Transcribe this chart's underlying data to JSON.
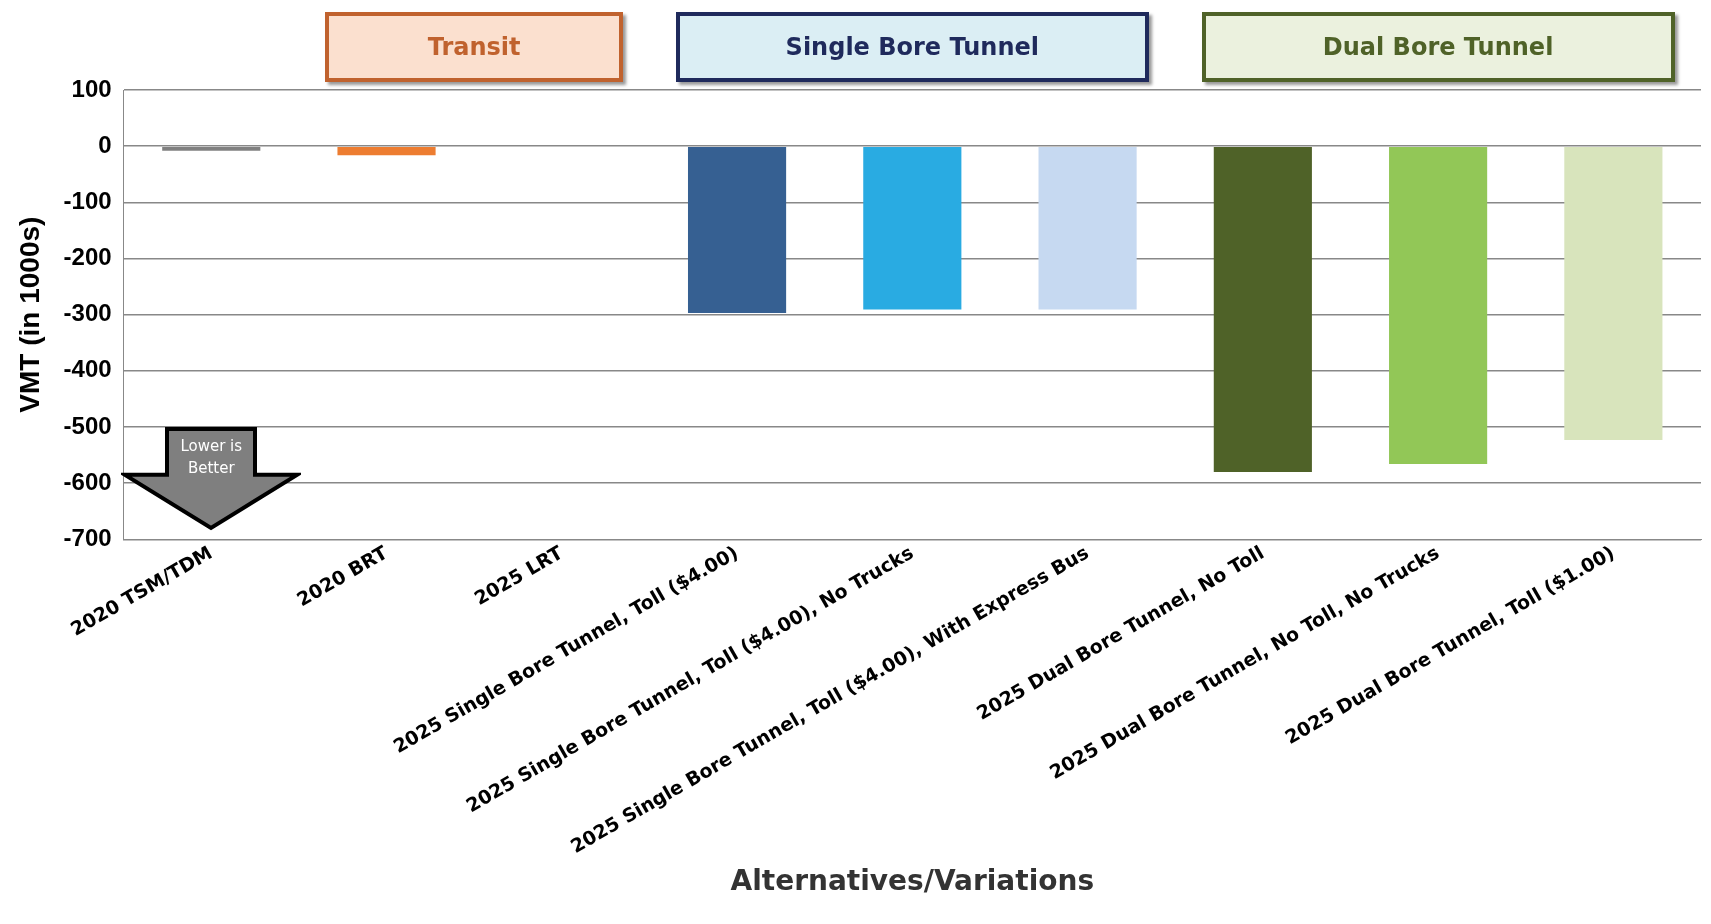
{
  "chart_data": {
    "type": "bar",
    "xlabel": "Alternatives/Variations",
    "ylabel": "VMT (in 1000s)",
    "categories": [
      "2020 TSM/TDM",
      "2020 BRT",
      "2025 LRT",
      "2025 Single Bore Tunnel, Toll ($4.00)",
      "2025 Single Bore Tunnel, Toll ($4.00), No Trucks",
      "2025 Single Bore Tunnel, Toll ($4.00), With Express Bus",
      "2025 Dual Bore Tunnel, No Toll",
      "2025 Dual Bore Tunnel, No Toll, No Trucks",
      "2025 Dual Bore Tunnel, Toll ($1.00)"
    ],
    "values": [
      -8,
      -16,
      0,
      -297,
      -291,
      -291,
      -580,
      -566,
      -523
    ],
    "colors": [
      "#808080",
      "#ed7d31",
      "#a5a5a5",
      "#366092",
      "#29abe2",
      "#c6d9f1",
      "#4f6228",
      "#92c757",
      "#d8e4bc"
    ],
    "ylim": [
      -700,
      100
    ],
    "yticks": [
      -700,
      -600,
      -500,
      -400,
      -300,
      -200,
      -100,
      0,
      100
    ],
    "grid": "y",
    "legend": false,
    "annotations": [
      "Transit",
      "Single Bore Tunnel",
      "Dual Bore Tunnel",
      "Lower is Better"
    ]
  }
}
